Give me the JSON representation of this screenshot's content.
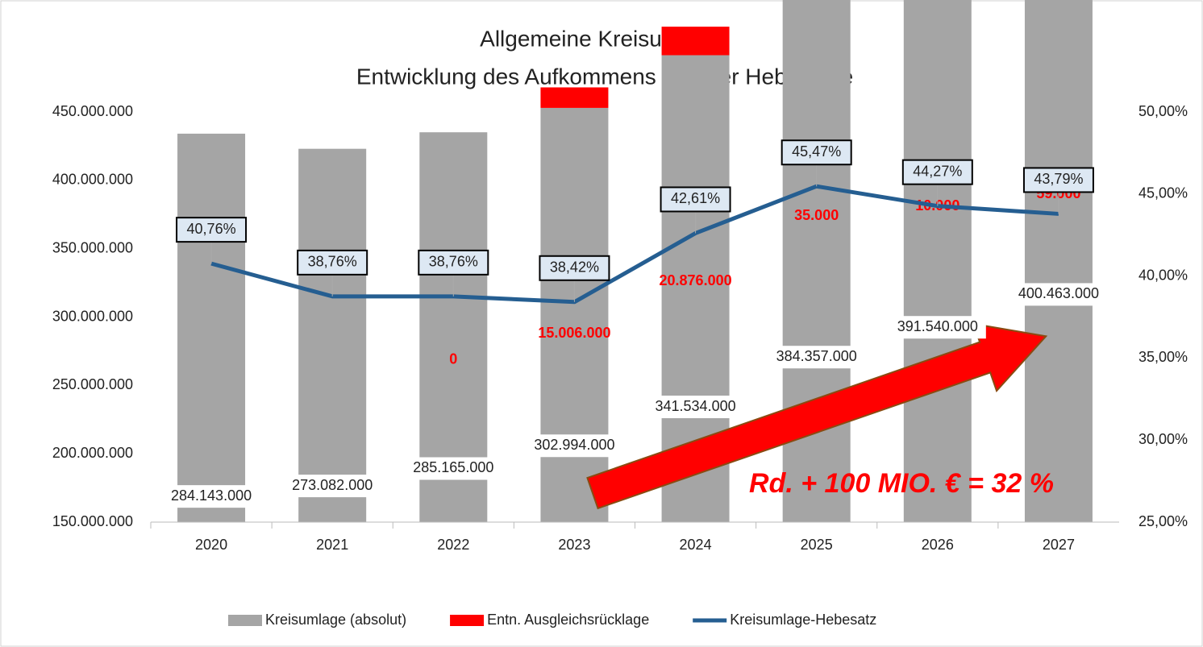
{
  "chart_data": {
    "type": "bar_line",
    "title": "Allgemeine Kreisumlage:",
    "subtitle": "Entwicklung des Aufkommens und der Hebesätze",
    "annotation": "Rd. + 100 MIO. €  = 32 %",
    "categories": [
      "2020",
      "2021",
      "2022",
      "2023",
      "2024",
      "2025",
      "2026",
      "2027"
    ],
    "series": [
      {
        "name": "Kreisumlage (absolut)",
        "color": "#a5a5a5",
        "type": "bar",
        "values": [
          284143000,
          273082000,
          285165000,
          302994000,
          341534000,
          384357000,
          391540000,
          400463000
        ],
        "value_labels": [
          "284.143.000",
          "273.082.000",
          "285.165.000",
          "302.994.000",
          "341.534.000",
          "384.357.000",
          "391.540.000",
          "400.463.000"
        ]
      },
      {
        "name": "Entn. Ausgleichsrücklage",
        "color": "#ff0000",
        "type": "bar",
        "values": [
          null,
          null,
          0,
          15006000,
          20876000,
          35000,
          10000,
          59000
        ],
        "value_labels": [
          null,
          null,
          "0",
          "15.006.000",
          "20.876.000",
          "35.000",
          "10.000",
          "59.000"
        ]
      },
      {
        "name": "Kreisumlage-Hebesatz",
        "color": "#255e91",
        "type": "line",
        "axis": "y2",
        "values": [
          40.76,
          38.76,
          38.76,
          38.42,
          42.61,
          45.47,
          44.27,
          43.79
        ],
        "value_labels": [
          "40,76%",
          "38,76%",
          "38,76%",
          "38,42%",
          "42,61%",
          "45,47%",
          "44,27%",
          "43,79%"
        ]
      }
    ],
    "ylim": [
      150000000,
      450000000
    ],
    "yticks": [
      {
        "value": 150000000,
        "label": "150.000.000"
      },
      {
        "value": 200000000,
        "label": "200.000.000"
      },
      {
        "value": 250000000,
        "label": "250.000.000"
      },
      {
        "value": 300000000,
        "label": "300.000.000"
      },
      {
        "value": 350000000,
        "label": "350.000.000"
      },
      {
        "value": 400000000,
        "label": "400.000.000"
      },
      {
        "value": 450000000,
        "label": "450.000.000"
      }
    ],
    "y2lim": [
      25,
      50
    ],
    "y2ticks": [
      {
        "value": 25,
        "label": "25,00%"
      },
      {
        "value": 30,
        "label": "30,00%"
      },
      {
        "value": 35,
        "label": "35,00%"
      },
      {
        "value": 40,
        "label": "40,00%"
      },
      {
        "value": 45,
        "label": "45,00%"
      },
      {
        "value": 50,
        "label": "50,00%"
      }
    ],
    "grid": false,
    "legend": "bottom"
  }
}
